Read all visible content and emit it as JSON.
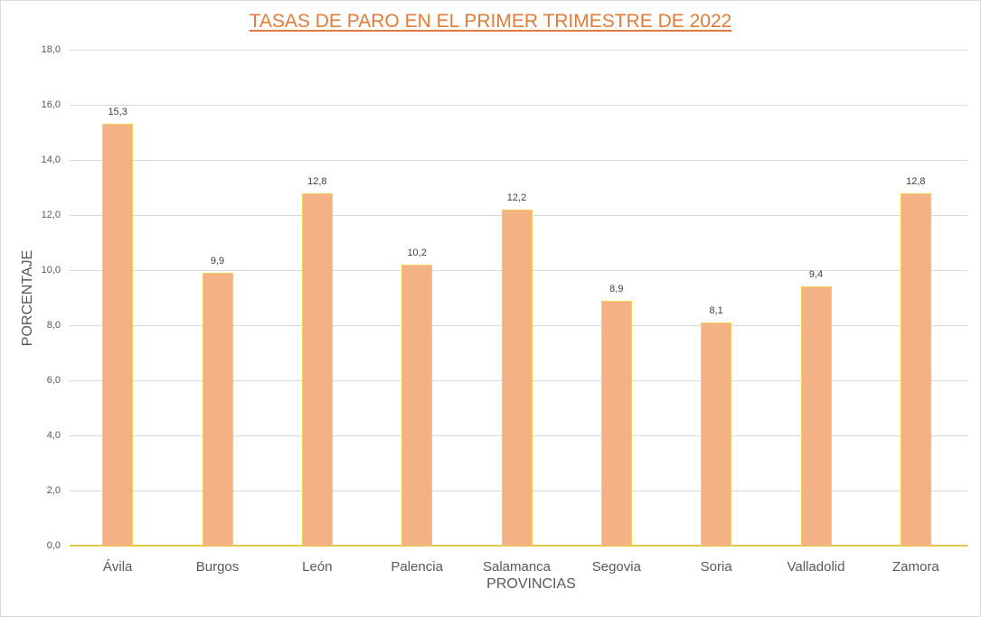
{
  "chart_data": {
    "type": "bar",
    "title": "TASAS DE PARO EN EL PRIMER TRIMESTRE DE 2022",
    "xlabel": "PROVINCIAS",
    "ylabel": "PORCENTAJE",
    "categories": [
      "Ávila",
      "Burgos",
      "León",
      "Palencia",
      "Salamanca",
      "Segovia",
      "Soria",
      "Valladolid",
      "Zamora"
    ],
    "values": [
      15.3,
      9.9,
      12.8,
      10.2,
      12.2,
      8.9,
      8.1,
      9.4,
      12.8
    ],
    "value_labels": [
      "15,3",
      "9,9",
      "12,8",
      "10,2",
      "12,2",
      "8,9",
      "8,1",
      "9,4",
      "12,8"
    ],
    "ylim": [
      0,
      18
    ],
    "yticks": [
      "0,0",
      "2,0",
      "4,0",
      "6,0",
      "8,0",
      "10,0",
      "12,0",
      "14,0",
      "16,0",
      "18,0"
    ],
    "grid": true,
    "legend": "none",
    "colors": {
      "bar_fill": "#f4b183",
      "bar_border": "#f2cf5b",
      "title": "#e07b39",
      "grid": "#d9d9d9"
    }
  }
}
